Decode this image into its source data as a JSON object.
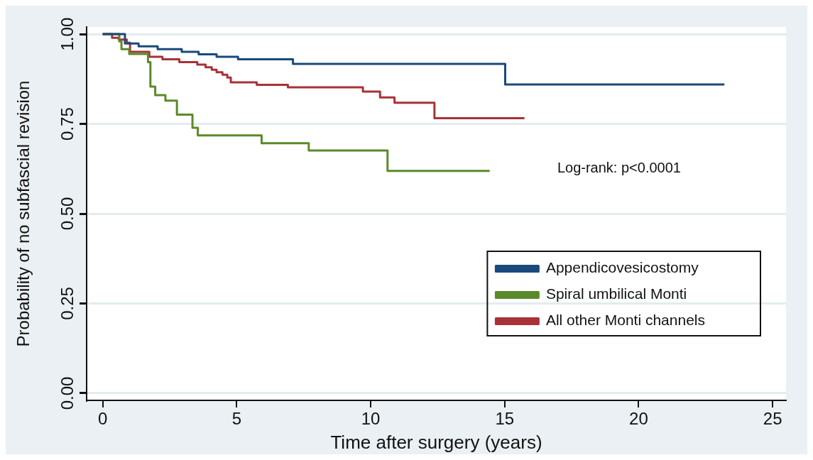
{
  "chart_data": {
    "type": "step",
    "xlabel": "Time after surgery (years)",
    "ylabel": "Probability of no subfascial revision",
    "xlim": [
      -0.6,
      25.5
    ],
    "ylim": [
      -0.02,
      1.02
    ],
    "xticks": [
      0,
      5,
      10,
      15,
      20,
      25
    ],
    "yticks": [
      {
        "value": 0,
        "label": "0.00"
      },
      {
        "value": 0.25,
        "label": "0.25"
      },
      {
        "value": 0.5,
        "label": "0.50"
      },
      {
        "value": 0.75,
        "label": "0.75"
      },
      {
        "value": 1,
        "label": "1.00"
      }
    ],
    "grid": "y",
    "legend": "bottom right",
    "annotations": [
      "Log-rank: p<0.0001"
    ],
    "series": [
      {
        "name": "Appendicovesicostomy",
        "color": "#1a4a7a",
        "x": [
          0,
          0.83,
          1.34,
          2.05,
          2.95,
          3.58,
          4.25,
          5.05,
          7.1,
          15.02,
          23.2
        ],
        "values": [
          1,
          0.974,
          0.966,
          0.958,
          0.951,
          0.944,
          0.937,
          0.93,
          0.917,
          0.86,
          0.86
        ]
      },
      {
        "name": "Spiral umbilical Monti",
        "color": "#5a8a2a",
        "x": [
          0,
          0.62,
          0.7,
          0.99,
          1.69,
          1.78,
          1.96,
          2.34,
          2.77,
          3.35,
          3.55,
          5.93,
          7.69,
          10.63,
          14.44
        ],
        "values": [
          1,
          0.98,
          0.958,
          0.945,
          0.922,
          0.854,
          0.83,
          0.815,
          0.776,
          0.739,
          0.718,
          0.696,
          0.676,
          0.619,
          0.619
        ]
      },
      {
        "name": "All other Monti channels",
        "color": "#a83238",
        "x": [
          0,
          0.35,
          0.6,
          0.9,
          1.02,
          1.74,
          2.23,
          2.86,
          3.53,
          3.84,
          4.07,
          4.25,
          4.47,
          4.65,
          4.78,
          5.75,
          6.91,
          9.71,
          10.35,
          10.89,
          12.38,
          15.74
        ],
        "values": [
          1,
          0.99,
          0.985,
          0.976,
          0.951,
          0.937,
          0.93,
          0.922,
          0.915,
          0.908,
          0.901,
          0.894,
          0.887,
          0.879,
          0.866,
          0.859,
          0.852,
          0.84,
          0.824,
          0.809,
          0.766,
          0.766
        ]
      }
    ]
  }
}
